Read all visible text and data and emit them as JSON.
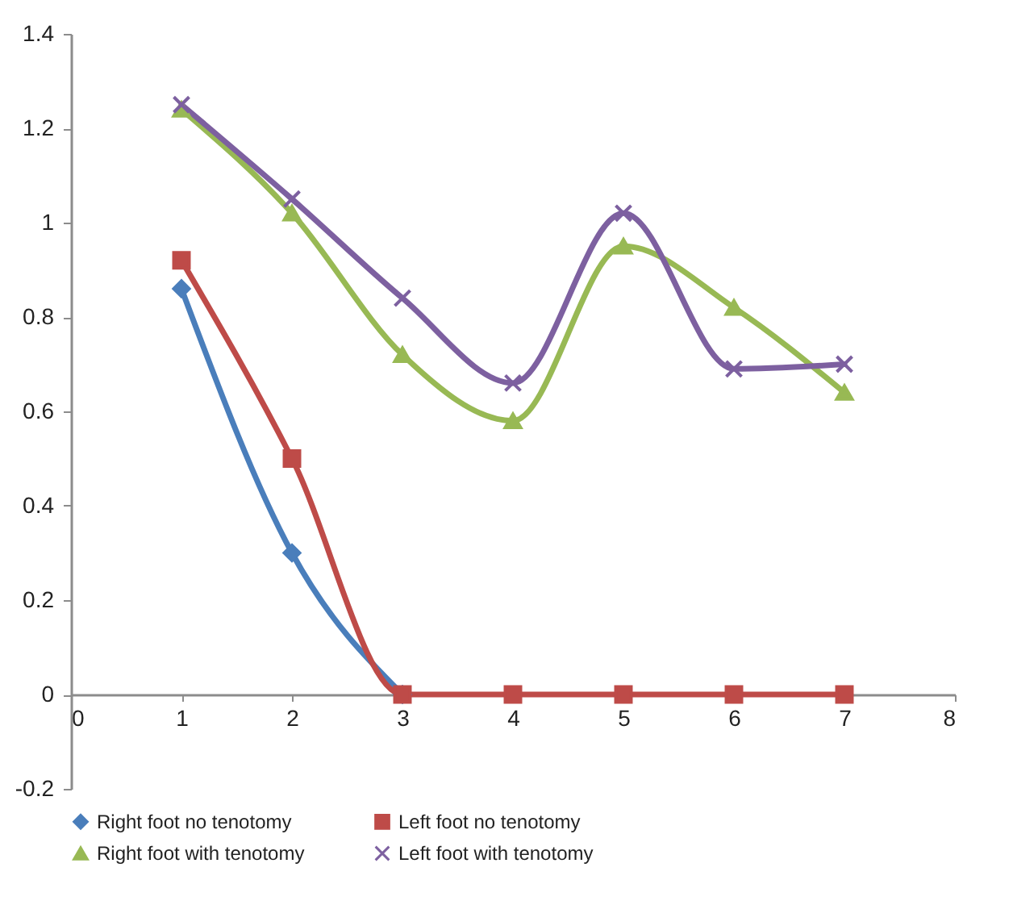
{
  "chart_data": {
    "type": "line",
    "x": [
      1,
      2,
      3,
      4,
      5,
      6,
      7
    ],
    "xlim": [
      0,
      8
    ],
    "xticks": [
      0,
      1,
      2,
      3,
      4,
      5,
      6,
      7,
      8
    ],
    "ylim": [
      -0.2,
      1.4
    ],
    "yticks": [
      -0.2,
      0,
      0.2,
      0.4,
      0.6,
      0.8,
      1,
      1.2,
      1.4
    ],
    "grid": false,
    "legend": "bottom",
    "line_style": "solid",
    "series": [
      {
        "name": "Right foot no tenotomy",
        "color": "#4a7ebb",
        "marker": "diamond",
        "values": [
          0.86,
          0.3,
          0,
          null,
          null,
          null,
          null
        ]
      },
      {
        "name": "Left foot no tenotomy",
        "color": "#be4b48",
        "marker": "square",
        "values": [
          0.92,
          0.5,
          0,
          0,
          0,
          0,
          0
        ]
      },
      {
        "name": "Right foot with tenotomy",
        "color": "#98b954",
        "marker": "triangle",
        "values": [
          1.24,
          1.02,
          0.72,
          0.58,
          0.95,
          0.82,
          0.64
        ]
      },
      {
        "name": "Left foot with tenotomy",
        "color": "#7d60a0",
        "marker": "cross",
        "values": [
          1.25,
          1.05,
          0.84,
          0.66,
          1.02,
          0.69,
          0.7
        ]
      }
    ]
  }
}
